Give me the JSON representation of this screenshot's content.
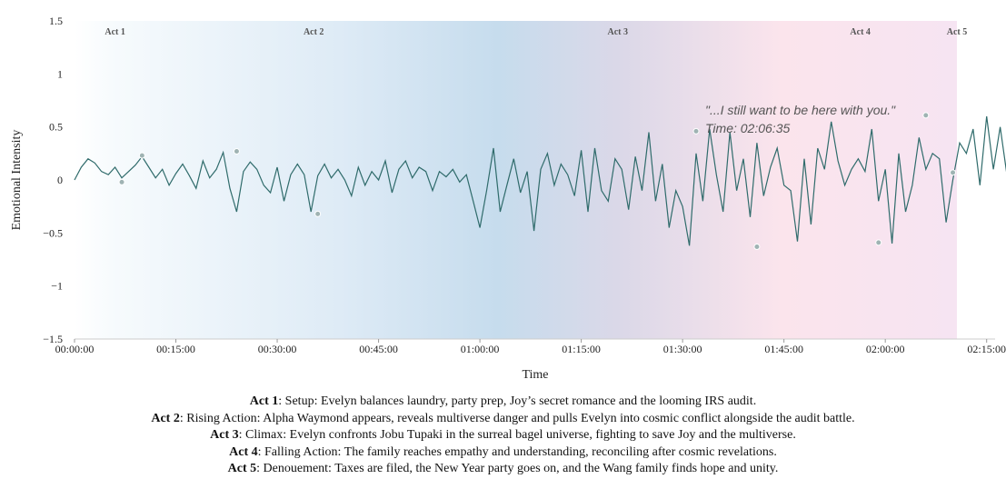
{
  "chart_data": {
    "type": "line",
    "xlabel": "Time",
    "ylabel": "Emotional Intensity",
    "ylim": [
      -1.5,
      1.5
    ],
    "y_ticks": [
      "1.5",
      "1",
      "0.5",
      "0",
      "−0.5",
      "−1",
      "−1.5"
    ],
    "x_ticks": [
      "00:00:00",
      "00:15:00",
      "00:30:00",
      "00:45:00",
      "01:00:00",
      "01:15:00",
      "01:30:00",
      "01:45:00",
      "02:00:00",
      "02:15:00"
    ],
    "xlim_minutes": [
      0,
      138
    ],
    "acts": [
      "Act 1",
      "Act 2",
      "Act 3",
      "Act 4",
      "Act 5"
    ],
    "series": [
      {
        "color": "#2f6b6b",
        "x_minutes": [
          0,
          1,
          2,
          3,
          4,
          5,
          6,
          7,
          8,
          9,
          10,
          11,
          12,
          13,
          14,
          15,
          16,
          17,
          18,
          19,
          20,
          21,
          22,
          23,
          24,
          25,
          26,
          27,
          28,
          29,
          30,
          31,
          32,
          33,
          34,
          35,
          36,
          37,
          38,
          39,
          40,
          41,
          42,
          43,
          44,
          45,
          46,
          47,
          48,
          49,
          50,
          51,
          52,
          53,
          54,
          55,
          56,
          57,
          58,
          59,
          60,
          61,
          62,
          63,
          64,
          65,
          66,
          67,
          68,
          69,
          70,
          71,
          72,
          73,
          74,
          75,
          76,
          77,
          78,
          79,
          80,
          81,
          82,
          83,
          84,
          85,
          86,
          87,
          88,
          89,
          90,
          91,
          92,
          93,
          94,
          95,
          96,
          97,
          98,
          99,
          100,
          101,
          102,
          103,
          104,
          105,
          106,
          107,
          108,
          109,
          110,
          111,
          112,
          113,
          114,
          115,
          116,
          117,
          118,
          119,
          120,
          121,
          122,
          123,
          124,
          125,
          126,
          127,
          128,
          129,
          130,
          131,
          132,
          133,
          134,
          135,
          136,
          137,
          138
        ],
        "values": [
          0.0,
          0.12,
          0.2,
          0.16,
          0.08,
          0.05,
          0.12,
          0.02,
          0.08,
          0.14,
          0.22,
          0.12,
          0.02,
          0.1,
          -0.05,
          0.06,
          0.15,
          0.04,
          -0.08,
          0.18,
          0.02,
          0.1,
          0.26,
          -0.08,
          -0.3,
          0.08,
          0.17,
          0.1,
          -0.05,
          -0.12,
          0.12,
          -0.2,
          0.05,
          0.15,
          0.05,
          -0.3,
          0.04,
          0.15,
          0.02,
          0.1,
          0.0,
          -0.15,
          0.12,
          -0.05,
          0.08,
          0.0,
          0.18,
          -0.12,
          0.1,
          0.18,
          0.02,
          0.12,
          0.08,
          -0.1,
          0.08,
          0.03,
          0.1,
          -0.02,
          0.05,
          -0.2,
          -0.45,
          -0.1,
          0.3,
          -0.3,
          -0.05,
          0.2,
          -0.12,
          0.08,
          -0.48,
          0.1,
          0.25,
          -0.05,
          0.15,
          0.05,
          -0.15,
          0.28,
          -0.3,
          0.3,
          -0.1,
          -0.2,
          0.2,
          0.1,
          -0.28,
          0.22,
          -0.1,
          0.45,
          -0.2,
          0.15,
          -0.45,
          -0.1,
          -0.25,
          -0.62,
          0.25,
          -0.2,
          0.48,
          0.05,
          -0.3,
          0.45,
          -0.1,
          0.2,
          -0.35,
          0.35,
          -0.15,
          0.12,
          0.3,
          -0.05,
          -0.1,
          -0.58,
          0.2,
          -0.42,
          0.3,
          0.1,
          0.55,
          0.18,
          -0.05,
          0.1,
          0.2,
          0.08,
          0.48,
          -0.2,
          0.1,
          -0.6,
          0.25,
          -0.3,
          -0.05,
          0.4,
          0.1,
          0.25,
          0.2,
          -0.4,
          0.0,
          0.35,
          0.25,
          0.48,
          -0.05,
          0.6,
          0.1,
          0.5,
          0.05
        ],
        "marker_x_minutes": [
          7,
          10,
          24,
          36,
          92,
          101,
          119,
          126,
          130
        ],
        "marker_values": [
          -0.02,
          0.23,
          0.27,
          -0.32,
          0.46,
          -0.63,
          -0.59,
          0.61,
          0.07
        ]
      }
    ],
    "annotation": {
      "quote": "\"...I still want to be here with you.\"",
      "time": "Time: 02:06:35"
    }
  },
  "captions": [
    {
      "act": "Act 1",
      "text": ": Setup: Evelyn balances laundry, party prep, Joy’s secret romance and the looming IRS audit."
    },
    {
      "act": "Act 2",
      "text": ": Rising Action: Alpha Waymond appears, reveals multiverse danger and pulls Evelyn into cosmic conflict alongside the audit battle."
    },
    {
      "act": "Act 3",
      "text": ": Climax: Evelyn confronts Jobu Tupaki in the surreal bagel universe, fighting to save Joy and the multiverse."
    },
    {
      "act": "Act 4",
      "text": ": Falling Action: The family reaches empathy and understanding, reconciling after cosmic revelations."
    },
    {
      "act": "Act 5",
      "text": ": Denouement: Taxes are filed, the New Year party goes on, and the Wang family finds hope and unity."
    }
  ]
}
